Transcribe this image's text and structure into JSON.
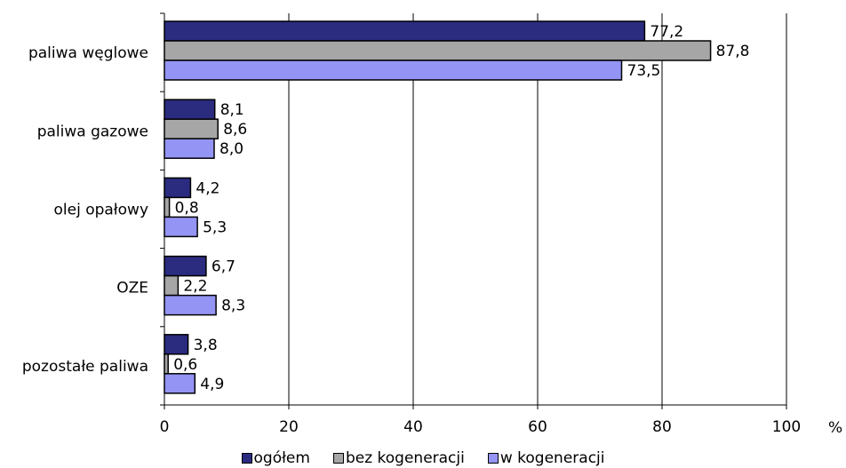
{
  "chart_data": {
    "type": "bar",
    "orientation": "horizontal",
    "categories": [
      "paliwa węglowe",
      "paliwa gazowe",
      "olej opałowy",
      "OZE",
      "pozostałe paliwa"
    ],
    "series": [
      {
        "name": "ogółem",
        "color": "#2b2b80",
        "values": [
          77.2,
          8.1,
          4.2,
          6.7,
          3.8
        ],
        "labels": [
          "77,2",
          "8,1",
          "4,2",
          "6,7",
          "3,8"
        ]
      },
      {
        "name": "bez kogeneracji",
        "color": "#a6a6a6",
        "values": [
          87.8,
          8.6,
          0.8,
          2.2,
          0.6
        ],
        "labels": [
          "87,8",
          "8,6",
          "0,8",
          "2,2",
          "0,6"
        ]
      },
      {
        "name": "w kogeneracji",
        "color": "#9494f4",
        "values": [
          73.5,
          8.0,
          5.3,
          8.3,
          4.9
        ],
        "labels": [
          "73,5",
          "8,0",
          "5,3",
          "8,3",
          "4,9"
        ]
      }
    ],
    "xlim": [
      0,
      100
    ],
    "xticks": [
      "0",
      "20",
      "40",
      "60",
      "80",
      "100"
    ],
    "unit": "%",
    "grid": "vertical",
    "legend": "bottom"
  }
}
